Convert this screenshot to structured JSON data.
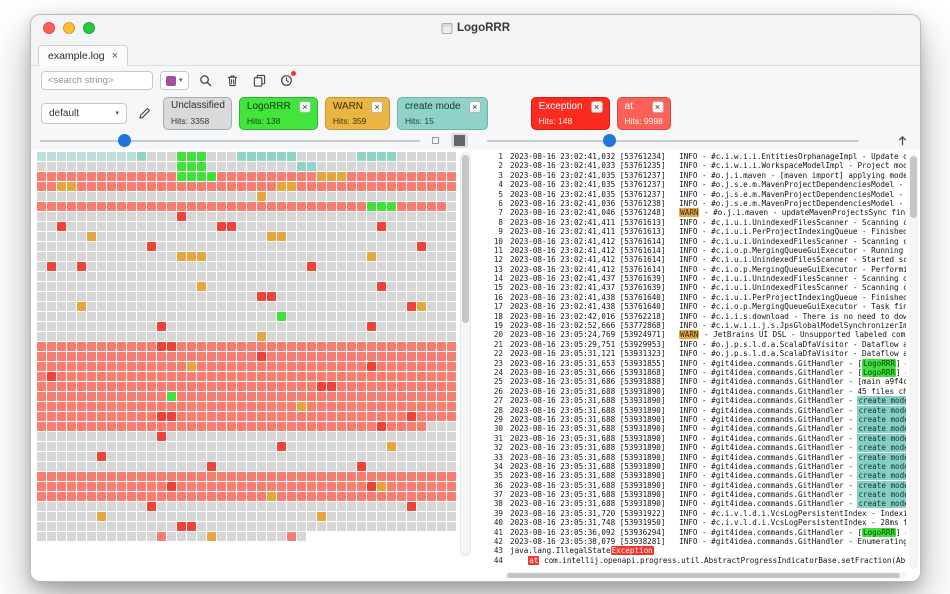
{
  "window": {
    "title": "LogoRRR"
  },
  "tab": {
    "label": "example.log"
  },
  "toolbar": {
    "search_placeholder": "<search string>"
  },
  "icons": {
    "close": "×",
    "caret_down": "▾",
    "search": "magnifier",
    "trash": "trash-can",
    "copy": "two-sheets",
    "history": "clock",
    "edit": "pencil",
    "scroll_top": "arrow-up",
    "small_blocks": "small-square",
    "large_blocks": "large-square"
  },
  "colors": {
    "accent_blue": "#2176d9",
    "swatch_purple": "#a0519e"
  },
  "filterbar": {
    "profile": "default",
    "chips": [
      {
        "label": "Unclassified",
        "hits": "Hits: 3358",
        "bg": "#d9dadb",
        "border": "#aaadaf",
        "fg": "#2e2e2e",
        "closable": false,
        "gap_before": false
      },
      {
        "label": "LogoRRR",
        "hits": "Hits: 138",
        "bg": "#41e53c",
        "border": "#2db32a",
        "fg": "#17361a",
        "closable": true,
        "gap_before": false
      },
      {
        "label": "WARN",
        "hits": "Hits: 359",
        "bg": "#eab542",
        "border": "#c79732",
        "fg": "#3a2c0d",
        "closable": true,
        "gap_before": false
      },
      {
        "label": "create mode",
        "hits": "Hits: 15",
        "bg": "#8ed2c8",
        "border": "#6fb3aa",
        "fg": "#163a36",
        "closable": true,
        "gap_before": false
      },
      {
        "label": "Exception",
        "hits": "Hits: 148",
        "bg": "#fb2b20",
        "border": "#d51a10",
        "fg": "#ffffff",
        "closable": true,
        "gap_before": true
      },
      {
        "label": "at",
        "hits": "Hits: 9998",
        "bg": "#fb6157",
        "border": "#d74940",
        "fg": "#ffffff",
        "closable": true,
        "gap_before": false
      }
    ]
  },
  "heatmap": {
    "palette": {
      "d": "#d6d6d6",
      "p": "#f97c71",
      "r": "#ef4136",
      "o": "#e5a63d",
      "g": "#3fe13a",
      "t": "#8fd3c7",
      "c": "#bfdedb",
      "w": "#ffffff"
    },
    "rows": [
      "cccccccccctdddgggdddttttttddddddttttdddddd",
      "ddddddddddddddgggdddddddddttdddddddddddddd",
      "ppppppppppppppggggppppppppppoooppppppppppp",
      "ppooppppppppppppppppppppoopppppppppppppppp",
      "ddddddddddddddddddddddodddddddddddddddddddd",
      "pppppppppppppppppppppppppppppppppgggpppppd",
      "ddddddddddddddrddddddddddddddddddddddddddd",
      "ddrdddddddddddddddrrddddddddddddddrddddddd",
      "dddddodddddddddddddddddooddddddddddddddddd",
      "dddddddddddrddddddddddddddddddddddddddrddd",
      "ddddddddddddddoooddddddddddddddddoddddddddd",
      "drddrddddddddddddddddddddddrddddddddddddddd",
      "dddddddddddddddddddddddddddddddddddddddddd",
      "ddddddddddddddddodddddddddddddddddrddddddd",
      "ddddddddddddddddddddddrrddddddddddddddddddd",
      "ddddoddddddddddddddddddddddddddddddddrodddd",
      "ddddddddddddddddddddddddgddddddddddddddddd",
      "ddddddddddddrddddddddddddddddddddrddddddddd",
      "ddddddddddddddddddddddoddddddddddddddddddd",
      "pppppppppppprrppppppppppppppppppppppppppppp",
      "pppppppppppppppppppppprppppppppppppppppppp",
      "pppppppppppppppoppppppppppppppppprpppppppp",
      "prpppppppppppppppppppppppppppppppppppppppp",
      "pppppppppppppppppppppppppppprrpppppppppppp",
      "pppppppppppppgppppppppppppppppppppppppppppp",
      "ppppppppppppppppppppppppppopppppppppppppppp",
      "pppppppppppprrppppppppppppppppppppppprppppp",
      "pppppppppppppppppppppppppppppppppprppppdddd",
      "ddddddddddddrdddddddddddddddddddddddddddddd",
      "ddddddddddddddddddddddddrddddddddddodddddd",
      "ddddddrdddddddddddddddddddddddddddddddddddd",
      "dddddddddddddddddrddddddddddddddrddddddddd",
      "pppppppppppppppppppppppppppppppppppppppppp",
      "ppppppppppppprppppppppppppppppppproppppppp",
      "pppppppppppppppppppppppoppppppppppppppppppp",
      "dddddddddddrdddddddddddddddddddddddddrdddd",
      "ddddddodddddddddddddddddddddodddddddddddddd",
      "ddddddddddddddrrdddddddddddddddddddddddddd",
      "ddddddddddddpddddodddddddpd"
    ]
  },
  "log": {
    "highlights": {
      "warn": {
        "bg": "#e7a93f",
        "fg": "#2b2b2b"
      },
      "logorrr": {
        "bg": "#3fe13a",
        "fg": "#133513"
      },
      "create": {
        "bg": "#85cfc5",
        "fg": "#143531"
      },
      "exception": {
        "bg": "#f5352a",
        "fg": "#ffffff"
      },
      "at": {
        "bg": "#f5352a",
        "fg": "#ffffff"
      }
    },
    "lines": [
      {
        "n": 1,
        "s": [
          [
            "2023-08-16 23:02:41,032 [53761234]   INFO - #c.i.w.i.i.EntitiesOrphanageImpl - Update orphan",
            null
          ]
        ]
      },
      {
        "n": 2,
        "s": [
          [
            "2023-08-16 23:02:41,033 [53761235]   INFO - #c.i.w.i.i.WorkspaceModelImpl - Project model u",
            null
          ]
        ]
      },
      {
        "n": 3,
        "s": [
          [
            "2023-08-16 23:02:41,035 [53761237]   INFO - #o.j.i.maven - [maven import] applying models t",
            null
          ]
        ]
      },
      {
        "n": 4,
        "s": [
          [
            "2023-08-16 23:02:41,035 [53761237]   INFO - #o.j.s.e.m.MavenProjectDependenciesModel - impo",
            null
          ]
        ]
      },
      {
        "n": 5,
        "s": [
          [
            "2023-08-16 23:02:41,035 [53761237]   INFO - #o.j.s.e.m.MavenProjectDependenciesModel - Star",
            null
          ]
        ]
      },
      {
        "n": 6,
        "s": [
          [
            "2023-08-16 23:02:41,036 [53761238]   INFO - #o.j.s.e.m.MavenProjectDependenciesModel - Fini",
            null
          ]
        ]
      },
      {
        "n": 7,
        "s": [
          [
            "2023-08-16 23:02:41,046 [53761248]   ",
            null
          ],
          [
            "WARN",
            "warn"
          ],
          [
            " - #o.j.i.maven - updateMavenProjectsSync fini",
            null
          ]
        ]
      },
      {
        "n": 8,
        "s": [
          [
            "2023-08-16 23:02:41,411 [53761613]   INFO - #c.i.u.i.UnindexedFilesScanner - Scanning compl",
            null
          ]
        ]
      },
      {
        "n": 9,
        "s": [
          [
            "2023-08-16 23:02:41,411 [53761613]   INFO - #c.i.u.i.PerProjectIndexingQueue - Finished for",
            null
          ]
        ]
      },
      {
        "n": 10,
        "s": [
          [
            "2023-08-16 23:02:41,412 [53761614]   INFO - #c.i.u.i.UnindexedFilesScanner - Scanning compl",
            null
          ]
        ]
      },
      {
        "n": 11,
        "s": [
          [
            "2023-08-16 23:02:41,412 [53761614]   INFO - #c.i.o.p.MergingQueueGuiExecutor - Running task",
            null
          ]
        ]
      },
      {
        "n": 12,
        "s": [
          [
            "2023-08-16 23:02:41,412 [53761614]   INFO - #c.i.u.i.UnindexedFilesScanner - Started scanni",
            null
          ]
        ]
      },
      {
        "n": 13,
        "s": [
          [
            "2023-08-16 23:02:41,412 [53761614]   INFO - #c.i.o.p.MergingQueueGuiExecutor - Performing de",
            null
          ]
        ]
      },
      {
        "n": 14,
        "s": [
          [
            "2023-08-16 23:02:41,437 [53761639]   INFO - #c.i.u.i.UnindexedFilesScanner - Scanning of ",
            null
          ],
          [
            "LogoRRR",
            "logorrr"
          ]
        ]
      },
      {
        "n": 15,
        "s": [
          [
            "2023-08-16 23:02:41,437 [53761639]   INFO - #c.i.u.i.UnindexedFilesScanner - Scanning compl",
            null
          ]
        ]
      },
      {
        "n": 16,
        "s": [
          [
            "2023-08-16 23:02:41,438 [53761640]   INFO - #c.i.u.i.PerProjectIndexingQueue - Finished for",
            null
          ]
        ]
      },
      {
        "n": 17,
        "s": [
          [
            "2023-08-16 23:02:41,438 [53761640]   INFO - #c.i.o.p.MergingQueueGuiExecutor - Task finishe",
            null
          ]
        ]
      },
      {
        "n": 18,
        "s": [
          [
            "2023-08-16 23:02:42,016 [53762218]   INFO - #c.i.i.s.download - There is no need to downloa",
            null
          ]
        ]
      },
      {
        "n": 19,
        "s": [
          [
            "2023-08-16 23:02:52,666 [53772868]   INFO - #c.i.w.i.i.j.s.JpsGlobalModelSynchronizerImpl -",
            null
          ]
        ]
      },
      {
        "n": 20,
        "s": [
          [
            "2023-08-16 23:05:24,769 [53924971]   ",
            null
          ],
          [
            "WARN",
            "warn"
          ],
          [
            " - JetBrains UI DSL - Unsupported labeled compone",
            null
          ]
        ]
      },
      {
        "n": 21,
        "s": [
          [
            "2023-08-16 23:05:29,751 [53929953]   INFO - #o.j.p.s.l.d.a.ScalaDfaVisitor - Dataflow analy",
            null
          ]
        ]
      },
      {
        "n": 22,
        "s": [
          [
            "2023-08-16 23:05:31,121 [53931323]   INFO - #o.j.p.s.l.d.a.ScalaDfaVisitor - Dataflow analy",
            null
          ]
        ]
      },
      {
        "n": 23,
        "s": [
          [
            "2023-08-16 23:05:31,653 [53931855]   INFO - #git4idea.commands.GitHandler - [",
            null
          ],
          [
            "LogoRRR",
            "logorrr"
          ],
          [
            "] git ",
            null
          ]
        ]
      },
      {
        "n": 24,
        "s": [
          [
            "2023-08-16 23:05:31,666 [53931868]   INFO - #git4idea.commands.GitHandler - [",
            null
          ],
          [
            "LogoRRR",
            "logorrr"
          ],
          [
            "] git ",
            null
          ]
        ]
      },
      {
        "n": 25,
        "s": [
          [
            "2023-08-16 23:05:31,686 [53931888]   INFO - #git4idea.commands.GitHandler - [main a9f4c00]",
            null
          ]
        ]
      },
      {
        "n": 26,
        "s": [
          [
            "2023-08-16 23:05:31,688 [53931890]   INFO - #git4idea.commands.GitHandler - 45 files change",
            null
          ]
        ]
      },
      {
        "n": 27,
        "s": [
          [
            "2023-08-16 23:05:31,688 [53931890]   INFO - #git4idea.commands.GitHandler - ",
            null
          ],
          [
            "create mode",
            "create"
          ],
          [
            " 100",
            null
          ]
        ]
      },
      {
        "n": 28,
        "s": [
          [
            "2023-08-16 23:05:31,688 [53931890]   INFO - #git4idea.commands.GitHandler - ",
            null
          ],
          [
            "create mode",
            "create"
          ],
          [
            " 100",
            null
          ]
        ]
      },
      {
        "n": 29,
        "s": [
          [
            "2023-08-16 23:05:31,688 [53931890]   INFO - #git4idea.commands.GitHandler - ",
            null
          ],
          [
            "create mode",
            "create"
          ],
          [
            " 100",
            null
          ]
        ]
      },
      {
        "n": 30,
        "s": [
          [
            "2023-08-16 23:05:31,688 [53931890]   INFO - #git4idea.commands.GitHandler - ",
            null
          ],
          [
            "create mode",
            "create"
          ],
          [
            " 100",
            null
          ]
        ]
      },
      {
        "n": 31,
        "s": [
          [
            "2023-08-16 23:05:31,688 [53931890]   INFO - #git4idea.commands.GitHandler - ",
            null
          ],
          [
            "create mode",
            "create"
          ],
          [
            " 100",
            null
          ]
        ]
      },
      {
        "n": 32,
        "s": [
          [
            "2023-08-16 23:05:31,688 [53931890]   INFO - #git4idea.commands.GitHandler - ",
            null
          ],
          [
            "create mode",
            "create"
          ],
          [
            " 100",
            null
          ]
        ]
      },
      {
        "n": 33,
        "s": [
          [
            "2023-08-16 23:05:31,688 [53931890]   INFO - #git4idea.commands.GitHandler - ",
            null
          ],
          [
            "create mode",
            "create"
          ],
          [
            " 100",
            null
          ]
        ]
      },
      {
        "n": 34,
        "s": [
          [
            "2023-08-16 23:05:31,688 [53931890]   INFO - #git4idea.commands.GitHandler - ",
            null
          ],
          [
            "create mode",
            "create"
          ],
          [
            " 100",
            null
          ]
        ]
      },
      {
        "n": 35,
        "s": [
          [
            "2023-08-16 23:05:31,688 [53931890]   INFO - #git4idea.commands.GitHandler - ",
            null
          ],
          [
            "create mode",
            "create"
          ],
          [
            " 100",
            null
          ]
        ]
      },
      {
        "n": 36,
        "s": [
          [
            "2023-08-16 23:05:31,688 [53931890]   INFO - #git4idea.commands.GitHandler - ",
            null
          ],
          [
            "create mode",
            "create"
          ],
          [
            " 100",
            null
          ]
        ]
      },
      {
        "n": 37,
        "s": [
          [
            "2023-08-16 23:05:31,688 [53931890]   INFO - #git4idea.commands.GitHandler - ",
            null
          ],
          [
            "create mode",
            "create"
          ],
          [
            " 100",
            null
          ]
        ]
      },
      {
        "n": 38,
        "s": [
          [
            "2023-08-16 23:05:31,688 [53931890]   INFO - #git4idea.commands.GitHandler - ",
            null
          ],
          [
            "create mode",
            "create"
          ],
          [
            " 100",
            null
          ]
        ]
      },
      {
        "n": 39,
        "s": [
          [
            "2023-08-16 23:05:31,720 [53931922]   INFO - #c.i.v.l.d.i.VcsLogPersistentIndex - Indexing 1",
            null
          ]
        ]
      },
      {
        "n": 40,
        "s": [
          [
            "2023-08-16 23:05:31,748 [53931950]   INFO - #c.i.v.l.d.i.VcsLogPersistentIndex - 28ms for i",
            null
          ]
        ]
      },
      {
        "n": 41,
        "s": [
          [
            "2023-08-16 23:05:36,092 [53936294]   INFO - #git4idea.commands.GitHandler - [",
            null
          ],
          [
            "LogoRRR",
            "logorrr"
          ],
          [
            "] git r",
            null
          ]
        ]
      },
      {
        "n": 42,
        "s": [
          [
            "2023-08-16 23:05:38,079 [53938281]   INFO - #git4idea.commands.GitHandler - Enumerating obj",
            null
          ]
        ]
      },
      {
        "n": 43,
        "s": [
          [
            "java.lang.IllegalState",
            null
          ],
          [
            "Exception",
            "exception"
          ]
        ]
      },
      {
        "n": 44,
        "s": [
          [
            "    ",
            null
          ],
          [
            "at",
            "at"
          ],
          [
            " com.intellij.openapi.progress.util.AbstractProgressIndicatorBase.setFraction(Ab",
            null
          ]
        ]
      }
    ]
  }
}
